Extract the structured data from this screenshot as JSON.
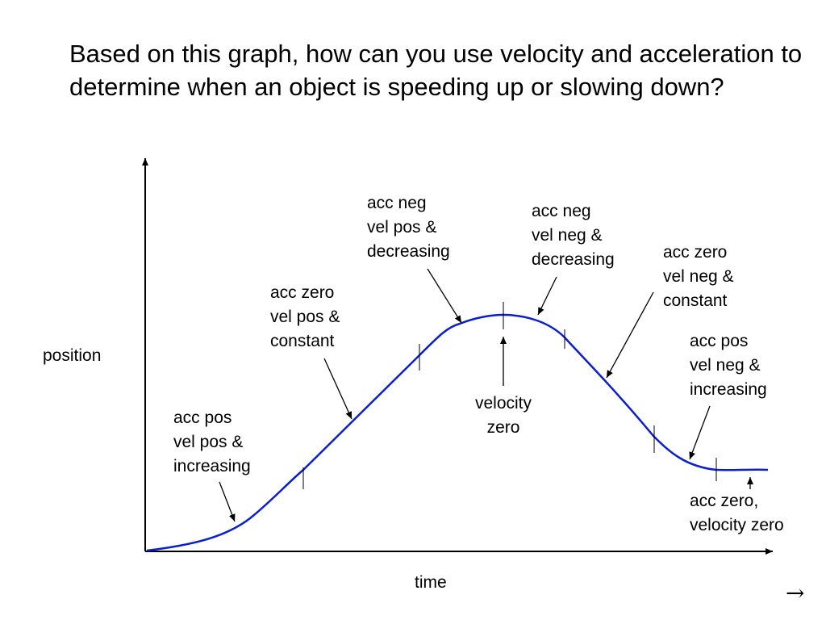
{
  "question": "Based on this graph, how can you use velocity and acceleration to determine when an object is speeding up or slowing down?",
  "axes": {
    "y_label": "position",
    "x_label": "time"
  },
  "annotations": {
    "accel_pos_vel_pos_increasing": [
      "acc pos",
      "vel pos &",
      "increasing"
    ],
    "accel_zero_vel_pos_constant": [
      "acc zero",
      "vel pos &",
      "constant"
    ],
    "accel_neg_vel_pos_decreasing": [
      "acc neg",
      "vel pos &",
      "decreasing"
    ],
    "velocity_zero_peak": [
      "velocity",
      "zero"
    ],
    "accel_neg_vel_neg_decreasing": [
      "acc neg",
      "vel neg &",
      "decreasing"
    ],
    "accel_zero_vel_neg_constant": [
      "acc zero",
      "vel neg &",
      "constant"
    ],
    "accel_pos_vel_neg_increasing": [
      "acc pos",
      "vel neg &",
      "increasing"
    ],
    "accel_zero_velocity_zero": [
      "acc zero,",
      "velocity zero"
    ]
  },
  "nav": {
    "next_arrow": "→"
  },
  "colors": {
    "curve": "#0a1ed2",
    "axes": "#000000",
    "text": "#000000"
  }
}
